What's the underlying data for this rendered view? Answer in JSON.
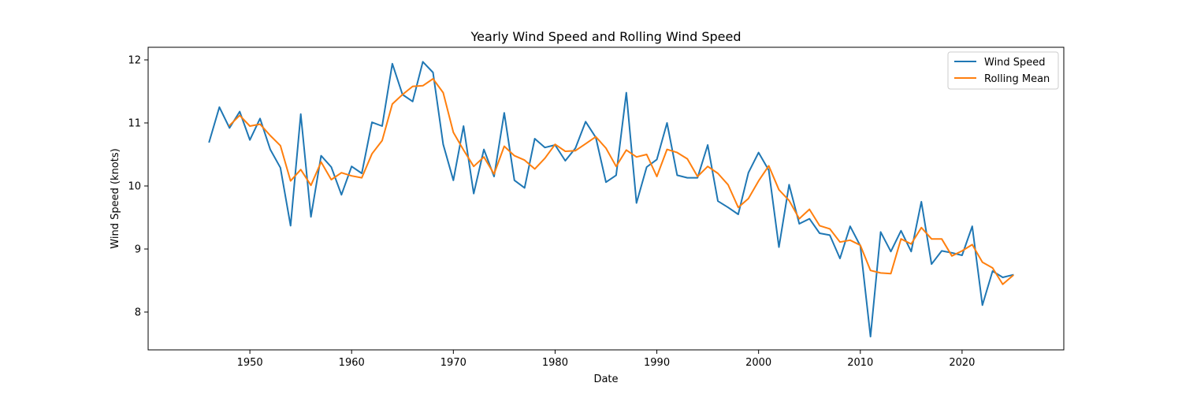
{
  "chart_data": {
    "type": "line",
    "title": "Yearly Wind Speed and Rolling Wind Speed",
    "xlabel": "Date",
    "ylabel": "Wind Speed (knots)",
    "xlim": [
      1940,
      2030
    ],
    "ylim": [
      7.4,
      12.2
    ],
    "xticks": [
      1950,
      1960,
      1970,
      1980,
      1990,
      2000,
      2010,
      2020
    ],
    "yticks": [
      8,
      9,
      10,
      11,
      12
    ],
    "grid": false,
    "legend_position": "top-right",
    "series": [
      {
        "name": "Wind Speed",
        "color": "#1f77b4",
        "x": [
          1946,
          1947,
          1948,
          1949,
          1950,
          1951,
          1952,
          1953,
          1954,
          1955,
          1956,
          1957,
          1958,
          1959,
          1960,
          1961,
          1962,
          1963,
          1964,
          1965,
          1966,
          1967,
          1968,
          1969,
          1970,
          1971,
          1972,
          1973,
          1974,
          1975,
          1976,
          1977,
          1978,
          1979,
          1980,
          1981,
          1982,
          1983,
          1984,
          1985,
          1986,
          1987,
          1988,
          1989,
          1990,
          1991,
          1992,
          1993,
          1994,
          1995,
          1996,
          1997,
          1998,
          1999,
          2000,
          2001,
          2002,
          2003,
          2004,
          2005,
          2006,
          2007,
          2008,
          2009,
          2010,
          2011,
          2012,
          2013,
          2014,
          2015,
          2016,
          2017,
          2018,
          2019,
          2020,
          2021,
          2022,
          2023,
          2024,
          2025
        ],
        "values": [
          10.7,
          11.25,
          10.92,
          11.18,
          10.73,
          11.07,
          10.58,
          10.29,
          9.37,
          11.14,
          9.51,
          10.48,
          10.3,
          9.86,
          10.31,
          10.2,
          11.01,
          10.95,
          11.94,
          11.45,
          11.34,
          11.97,
          11.8,
          10.66,
          10.09,
          10.95,
          9.88,
          10.58,
          10.15,
          11.16,
          10.09,
          9.97,
          10.75,
          10.61,
          10.65,
          10.4,
          10.6,
          11.02,
          10.77,
          10.06,
          10.17,
          11.48,
          9.73,
          10.3,
          10.42,
          11.0,
          10.17,
          10.13,
          10.13,
          10.65,
          9.76,
          9.66,
          9.55,
          10.21,
          10.53,
          10.25,
          9.03,
          10.02,
          9.4,
          9.48,
          9.25,
          9.22,
          8.85,
          9.36,
          9.05,
          7.61,
          9.27,
          8.96,
          9.29,
          8.96,
          9.75,
          8.76,
          8.97,
          8.94,
          8.9,
          9.36,
          8.11,
          8.65,
          8.55,
          8.59
        ]
      },
      {
        "name": "Rolling Mean",
        "color": "#ff7f0e",
        "x": [
          1948,
          1949,
          1950,
          1951,
          1952,
          1953,
          1954,
          1955,
          1956,
          1957,
          1958,
          1959,
          1960,
          1961,
          1962,
          1963,
          1964,
          1965,
          1966,
          1967,
          1968,
          1969,
          1970,
          1971,
          1972,
          1973,
          1974,
          1975,
          1976,
          1977,
          1978,
          1979,
          1980,
          1981,
          1982,
          1983,
          1984,
          1985,
          1986,
          1987,
          1988,
          1989,
          1990,
          1991,
          1992,
          1993,
          1994,
          1995,
          1996,
          1997,
          1998,
          1999,
          2000,
          2001,
          2002,
          2003,
          2004,
          2005,
          2006,
          2007,
          2008,
          2009,
          2010,
          2011,
          2012,
          2013,
          2014,
          2015,
          2016,
          2017,
          2018,
          2019,
          2020,
          2021,
          2022,
          2023,
          2024,
          2025
        ],
        "values": [
          10.96,
          11.12,
          10.95,
          10.98,
          10.8,
          10.64,
          10.08,
          10.26,
          10.01,
          10.38,
          10.1,
          10.21,
          10.16,
          10.13,
          10.51,
          10.72,
          11.3,
          11.45,
          11.58,
          11.59,
          11.7,
          11.48,
          10.85,
          10.57,
          10.31,
          10.46,
          10.19,
          10.63,
          10.48,
          10.41,
          10.27,
          10.44,
          10.66,
          10.55,
          10.56,
          10.67,
          10.78,
          10.6,
          10.31,
          10.57,
          10.46,
          10.5,
          10.15,
          10.58,
          10.53,
          10.43,
          10.15,
          10.31,
          10.2,
          10.02,
          9.66,
          9.8,
          10.08,
          10.32,
          9.94,
          9.77,
          9.48,
          9.63,
          9.37,
          9.32,
          9.11,
          9.14,
          9.06,
          8.66,
          8.62,
          8.61,
          9.16,
          9.08,
          9.34,
          9.16,
          9.16,
          8.89,
          8.97,
          9.07,
          8.79,
          8.7,
          8.44,
          8.58
        ]
      }
    ]
  }
}
